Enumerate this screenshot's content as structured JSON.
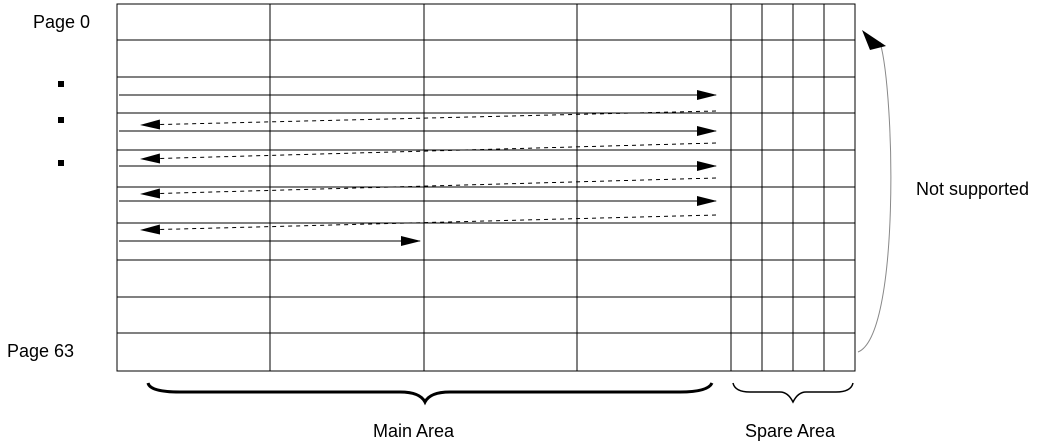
{
  "labels": {
    "page_first": "Page 0",
    "page_last": "Page 63",
    "not_supported": "Not supported",
    "main_area": "Main Area",
    "spare_area": "Spare Area"
  },
  "ellipsis_dots": [
    "dot-1",
    "dot-2",
    "dot-3"
  ],
  "icons": {
    "solid_arrow": "right-arrow-icon",
    "dashed_arrow": "left-arrow-icon",
    "return_arrow": "curved-arrow-icon",
    "brace": "curly-brace-icon"
  },
  "colors": {
    "line": "#000000",
    "background": "#ffffff"
  }
}
